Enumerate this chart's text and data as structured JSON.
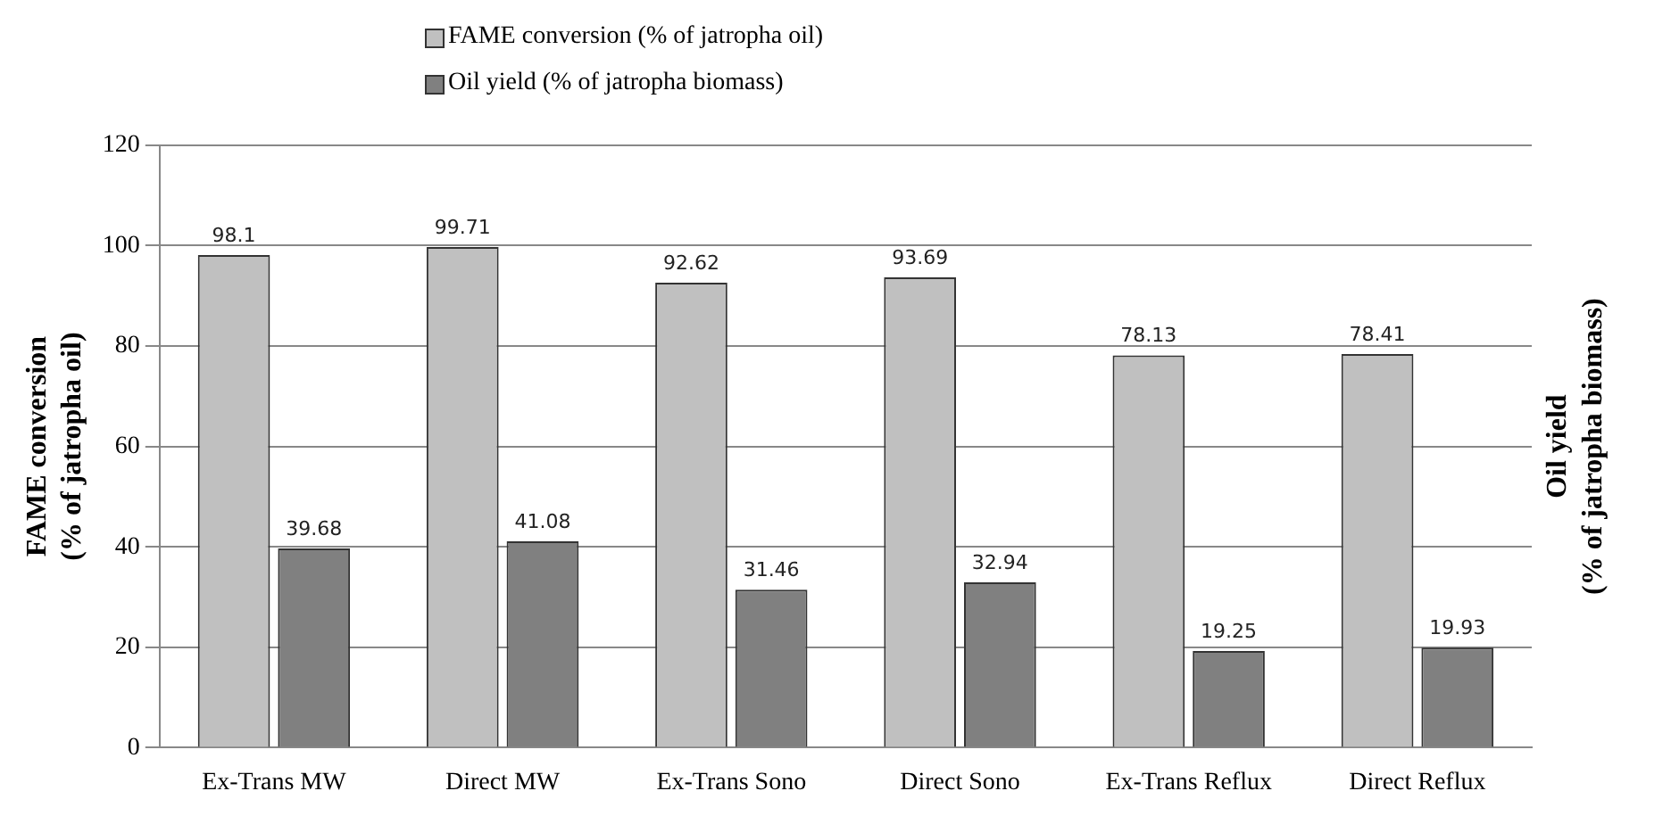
{
  "chart_data": {
    "type": "bar",
    "categories": [
      "Ex-Trans MW",
      "Direct MW",
      "Ex-Trans Sono",
      "Direct Sono",
      "Ex-Trans Reflux",
      "Direct Reflux"
    ],
    "series": [
      {
        "name": "FAME conversion (% of jatropha oil)",
        "color": "#c0c0c0",
        "values": [
          98.1,
          99.71,
          92.62,
          93.69,
          78.13,
          78.41
        ]
      },
      {
        "name": "Oil yield (% of jatropha biomass)",
        "color": "#808080",
        "values": [
          39.68,
          41.08,
          31.46,
          32.94,
          19.25,
          19.93
        ]
      }
    ],
    "ylabel": "FAME conversion\n(% of jatropha oil)",
    "y2label": "Oil yield\n(% of jatropha biomass)",
    "ylim": [
      0,
      120
    ],
    "yticks": [
      0,
      20,
      40,
      60,
      80,
      100,
      120
    ],
    "grid": "y",
    "legend": "top left",
    "data_labels": true
  }
}
